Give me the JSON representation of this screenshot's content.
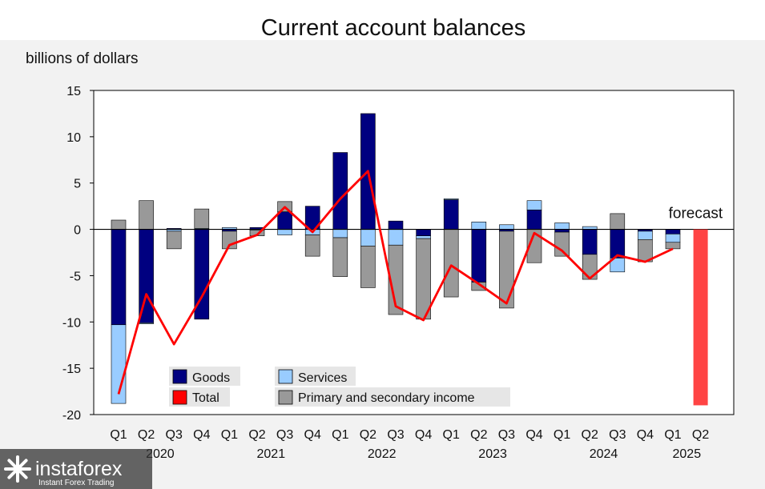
{
  "chart_data": {
    "type": "bar",
    "title": "Current account balances",
    "ylabel": "billions of dollars",
    "ylim": [
      -20,
      15
    ],
    "yticks": [
      15,
      10,
      5,
      0,
      -5,
      -10,
      -15,
      -20
    ],
    "categories": [
      "Q1",
      "Q2",
      "Q3",
      "Q4",
      "Q1",
      "Q2",
      "Q3",
      "Q4",
      "Q1",
      "Q2",
      "Q3",
      "Q4",
      "Q1",
      "Q2",
      "Q3",
      "Q4",
      "Q1",
      "Q2",
      "Q3",
      "Q4",
      "Q1",
      "Q2"
    ],
    "years": [
      {
        "label": "2020",
        "span": [
          0,
          3
        ]
      },
      {
        "label": "2021",
        "span": [
          4,
          7
        ]
      },
      {
        "label": "2022",
        "span": [
          8,
          11
        ]
      },
      {
        "label": "2023",
        "span": [
          12,
          15
        ]
      },
      {
        "label": "2024",
        "span": [
          16,
          19
        ]
      },
      {
        "label": "2025",
        "span": [
          20,
          21
        ]
      }
    ],
    "series": [
      {
        "name": "Goods",
        "color": "#000080",
        "type": "bar",
        "values": [
          -10.3,
          -10.1,
          0.1,
          -9.7,
          -0.2,
          0.2,
          1.9,
          2.5,
          8.3,
          12.5,
          0.9,
          -0.7,
          3.2,
          -5.7,
          -0.2,
          2.1,
          -0.3,
          -2.7,
          -3.1,
          -0.2,
          -0.5,
          null
        ]
      },
      {
        "name": "Services",
        "color": "#99ccff",
        "type": "bar",
        "values": [
          -8.5,
          -0.1,
          -0.2,
          0.1,
          0.2,
          -0.1,
          -0.6,
          -0.6,
          -0.9,
          -1.8,
          -1.7,
          -0.3,
          0.1,
          0.8,
          0.5,
          1.0,
          0.7,
          0.3,
          -1.5,
          -0.9,
          -0.9,
          null
        ]
      },
      {
        "name": "Primary and secondary income",
        "color": "#999999",
        "type": "bar",
        "values": [
          1.0,
          3.1,
          -1.9,
          2.1,
          -1.9,
          -0.6,
          1.1,
          -2.3,
          -4.2,
          -4.5,
          -7.5,
          -8.7,
          -7.3,
          -0.9,
          -8.3,
          -3.6,
          -2.6,
          -2.7,
          1.7,
          -2.4,
          -0.7,
          null
        ]
      },
      {
        "name": "Total",
        "color": "#ff0000",
        "type": "line",
        "values": [
          -17.8,
          -7.0,
          -12.4,
          -7.3,
          -1.7,
          -0.6,
          2.4,
          -0.3,
          3.3,
          6.3,
          -8.3,
          -9.8,
          -3.9,
          -5.9,
          -8.0,
          -0.4,
          -2.3,
          -5.3,
          -2.8,
          -3.5,
          -2.1,
          null
        ]
      }
    ],
    "forecast": {
      "label": "forecast",
      "category_index": 21,
      "value": -19.0,
      "color": "#ff4444"
    },
    "legend_placement": "bottom-left",
    "grid": false
  },
  "watermark": {
    "brand": "instaforex",
    "tagline": "Instant Forex Trading"
  }
}
